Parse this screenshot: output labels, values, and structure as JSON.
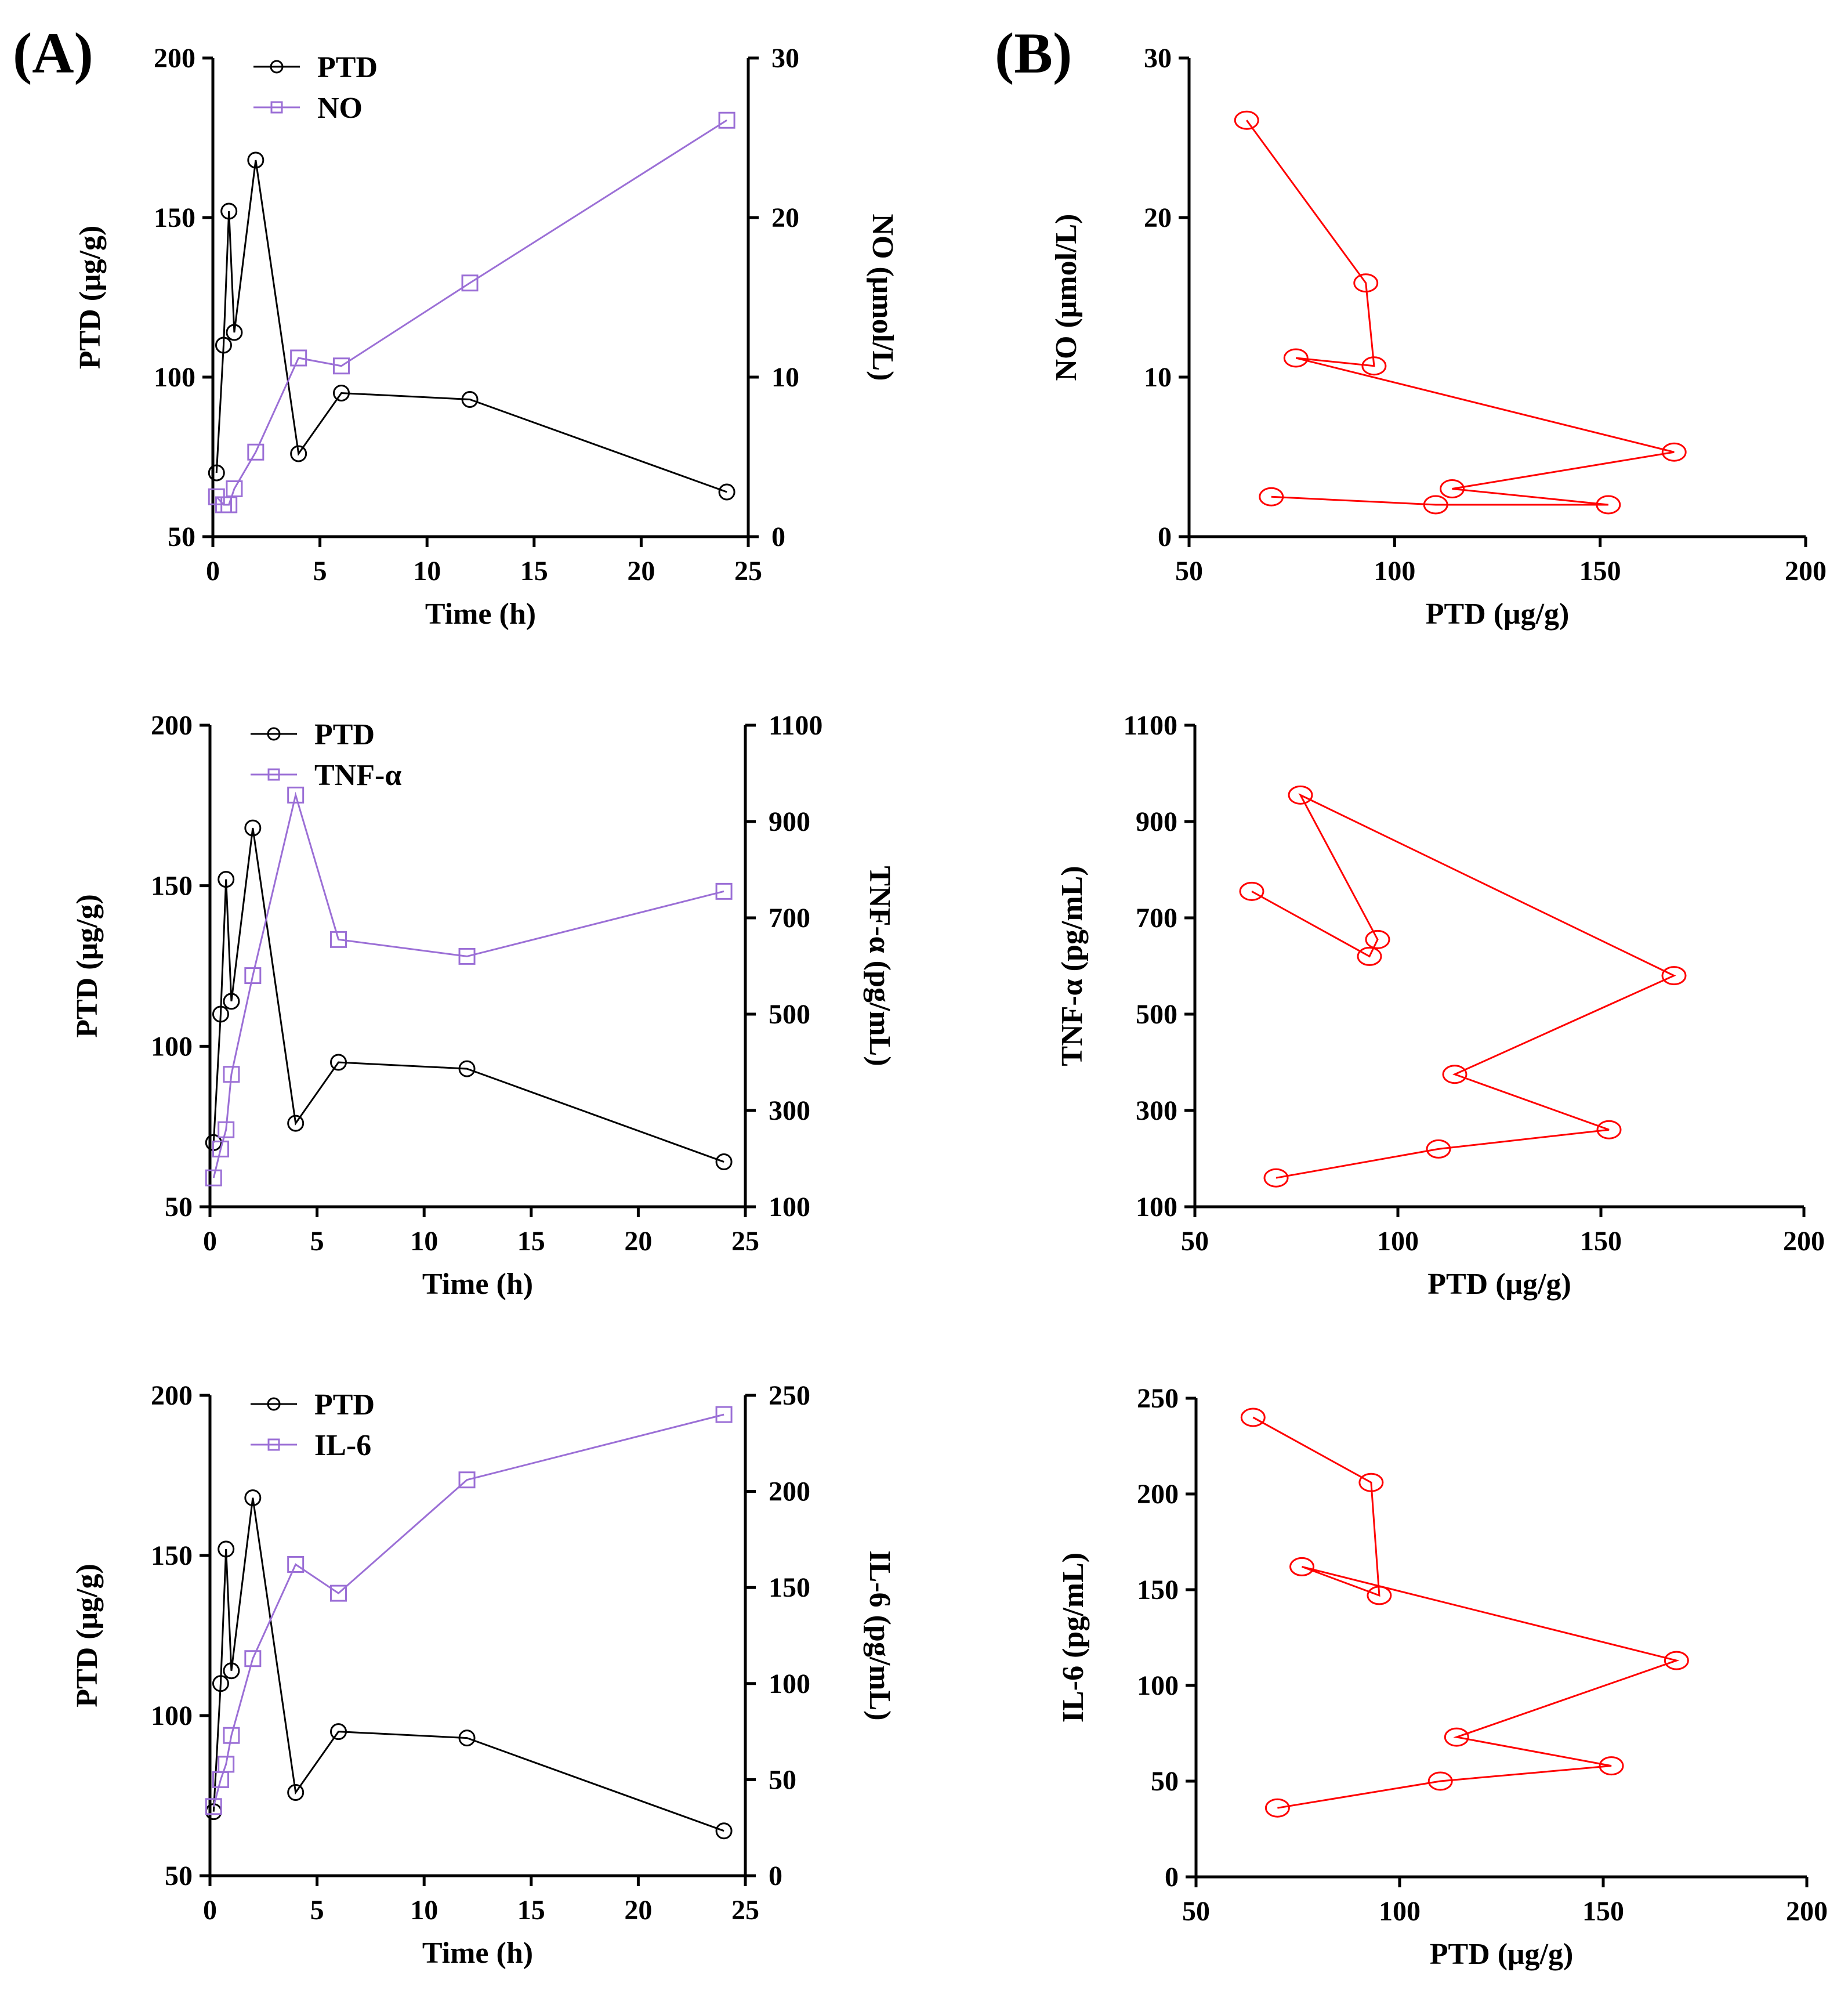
{
  "figure": {
    "panel_labels": [
      "(A)",
      "(B)"
    ]
  },
  "colors": {
    "ptd": "#000000",
    "cytokine": "#9b6fd6",
    "scatter": "#ff0000",
    "axis": "#000000"
  },
  "chart_data": [
    {
      "id": "A1",
      "type": "line",
      "panel": "(A)",
      "xlabel": "Time (h)",
      "xlim": [
        0,
        25
      ],
      "xticks": [
        0,
        5,
        10,
        15,
        20,
        25
      ],
      "ylabel": "PTD (μg/g)",
      "ylim": [
        50,
        200
      ],
      "yticks": [
        50,
        100,
        150,
        200
      ],
      "y2label": "NO (μmol/L)",
      "y2lim": [
        0,
        30
      ],
      "y2ticks": [
        0,
        10,
        20,
        30
      ],
      "legend": [
        "PTD",
        "NO"
      ],
      "series": [
        {
          "name": "PTD",
          "axis": "left",
          "marker": "circle",
          "x": [
            0.17,
            0.5,
            0.75,
            1,
            2,
            4,
            6,
            12,
            24
          ],
          "values": [
            70,
            110,
            152,
            114,
            168,
            76,
            95,
            93,
            64
          ]
        },
        {
          "name": "NO",
          "axis": "right",
          "marker": "square",
          "x": [
            0.17,
            0.5,
            0.75,
            1,
            2,
            4,
            6,
            12,
            24
          ],
          "values": [
            2.5,
            2.0,
            2.0,
            3.0,
            5.3,
            11.2,
            10.7,
            15.9,
            26.1
          ]
        }
      ]
    },
    {
      "id": "A2",
      "type": "line",
      "xlabel": "Time (h)",
      "xlim": [
        0,
        25
      ],
      "xticks": [
        0,
        5,
        10,
        15,
        20,
        25
      ],
      "ylabel": "PTD (μg/g)",
      "ylim": [
        50,
        200
      ],
      "yticks": [
        50,
        100,
        150,
        200
      ],
      "y2label": "TNF-α (pg/mL)",
      "y2lim": [
        100,
        1100
      ],
      "y2ticks": [
        100,
        300,
        500,
        700,
        900,
        1100
      ],
      "legend": [
        "PTD",
        "TNF-α"
      ],
      "series": [
        {
          "name": "PTD",
          "axis": "left",
          "marker": "circle",
          "x": [
            0.17,
            0.5,
            0.75,
            1,
            2,
            4,
            6,
            12,
            24
          ],
          "values": [
            70,
            110,
            152,
            114,
            168,
            76,
            95,
            93,
            64
          ]
        },
        {
          "name": "TNF-α",
          "axis": "right",
          "marker": "square",
          "x": [
            0.17,
            0.5,
            0.75,
            1,
            2,
            4,
            6,
            12,
            24
          ],
          "values": [
            160,
            220,
            260,
            375,
            580,
            955,
            655,
            620,
            755
          ]
        }
      ]
    },
    {
      "id": "A3",
      "type": "line",
      "xlabel": "Time (h)",
      "xlim": [
        0,
        25
      ],
      "xticks": [
        0,
        5,
        10,
        15,
        20,
        25
      ],
      "ylabel": "PTD (μg/g)",
      "ylim": [
        50,
        200
      ],
      "yticks": [
        50,
        100,
        150,
        200
      ],
      "y2label": "IL-6 (pg/mL)",
      "y2lim": [
        0,
        250
      ],
      "y2ticks": [
        0,
        50,
        100,
        150,
        200,
        250
      ],
      "legend": [
        "PTD",
        "IL-6"
      ],
      "series": [
        {
          "name": "PTD",
          "axis": "left",
          "marker": "circle",
          "x": [
            0.17,
            0.5,
            0.75,
            1,
            2,
            4,
            6,
            12,
            24
          ],
          "values": [
            70,
            110,
            152,
            114,
            168,
            76,
            95,
            93,
            64
          ]
        },
        {
          "name": "IL-6",
          "axis": "right",
          "marker": "square",
          "x": [
            0.17,
            0.5,
            0.75,
            1,
            2,
            4,
            6,
            12,
            24
          ],
          "values": [
            36,
            50,
            58,
            73,
            113,
            162,
            147,
            206,
            240
          ]
        }
      ]
    },
    {
      "id": "B1",
      "type": "scatter",
      "panel": "(B)",
      "xlabel": "PTD (μg/g)",
      "xlim": [
        50,
        200
      ],
      "xticks": [
        50,
        100,
        150,
        200
      ],
      "ylabel": "NO (μmol/L)",
      "ylim": [
        0,
        30
      ],
      "yticks": [
        0,
        10,
        20,
        30
      ],
      "series": [
        {
          "name": "NO vs PTD",
          "marker": "circle",
          "connected": true,
          "x": [
            70,
            110,
            152,
            114,
            168,
            76,
            95,
            93,
            64
          ],
          "values": [
            2.5,
            2.0,
            2.0,
            3.0,
            5.3,
            11.2,
            10.7,
            15.9,
            26.1
          ]
        }
      ]
    },
    {
      "id": "B2",
      "type": "scatter",
      "xlabel": "PTD (μg/g)",
      "xlim": [
        50,
        200
      ],
      "xticks": [
        50,
        100,
        150,
        200
      ],
      "ylabel": "TNF-α (pg/mL)",
      "ylim": [
        100,
        1100
      ],
      "yticks": [
        100,
        300,
        500,
        700,
        900,
        1100
      ],
      "series": [
        {
          "name": "TNF-α vs PTD",
          "marker": "circle",
          "connected": true,
          "x": [
            70,
            110,
            152,
            114,
            168,
            76,
            95,
            93,
            64
          ],
          "values": [
            160,
            220,
            260,
            375,
            580,
            955,
            655,
            620,
            755
          ]
        }
      ]
    },
    {
      "id": "B3",
      "type": "scatter",
      "xlabel": "PTD (μg/g)",
      "xlim": [
        50,
        200
      ],
      "xticks": [
        50,
        100,
        150,
        200
      ],
      "ylabel": "IL-6 (pg/mL)",
      "ylim": [
        0,
        250
      ],
      "yticks": [
        0,
        50,
        100,
        150,
        200,
        250
      ],
      "series": [
        {
          "name": "IL-6 vs PTD",
          "marker": "circle",
          "connected": true,
          "x": [
            70,
            110,
            152,
            114,
            168,
            76,
            95,
            93,
            64
          ],
          "values": [
            36,
            50,
            58,
            73,
            113,
            162,
            147,
            206,
            240
          ]
        }
      ]
    }
  ]
}
